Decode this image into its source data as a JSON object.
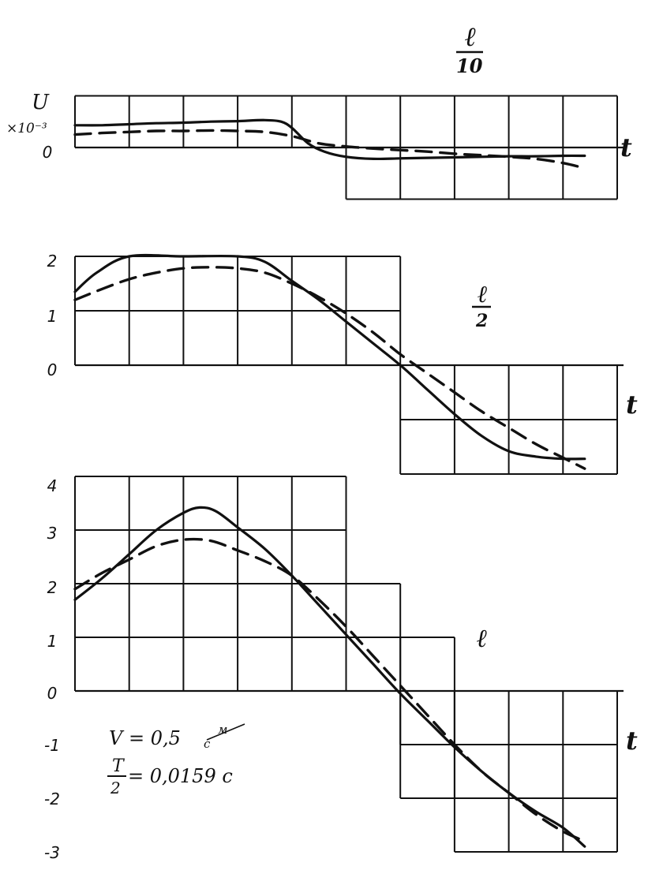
{
  "ink_color": "#111111",
  "chart_data": [
    {
      "type": "line",
      "panel_label_top": "ℓ",
      "panel_label_bottom": "10",
      "ylabel": "U",
      "ylabel_scale": "×10⁻³",
      "xlabel": "t",
      "y_ticks": [
        "0"
      ],
      "ylim": [
        -1,
        1
      ],
      "grid": true,
      "series": [
        {
          "style": "solid",
          "x": [
            0,
            0.5,
            1,
            1.5,
            2,
            2.5,
            3,
            3.5,
            3.8,
            4,
            4.3,
            4.6,
            5,
            5.5,
            6,
            6.5,
            7,
            7.5,
            8,
            8.5,
            9,
            9.4
          ],
          "y": [
            0.43,
            0.43,
            0.45,
            0.47,
            0.48,
            0.5,
            0.51,
            0.53,
            0.5,
            0.38,
            0.08,
            -0.08,
            -0.18,
            -0.22,
            -0.21,
            -0.2,
            -0.19,
            -0.18,
            -0.17,
            -0.17,
            -0.16,
            -0.16
          ]
        },
        {
          "style": "dashed",
          "x": [
            0,
            0.5,
            1,
            1.5,
            2,
            2.5,
            3,
            3.5,
            4,
            4.5,
            5,
            5.5,
            6,
            6.5,
            7,
            7.5,
            8,
            8.5,
            9,
            9.4
          ],
          "y": [
            0.25,
            0.28,
            0.3,
            0.32,
            0.32,
            0.33,
            0.32,
            0.3,
            0.22,
            0.08,
            0.02,
            -0.02,
            -0.05,
            -0.08,
            -0.12,
            -0.15,
            -0.18,
            -0.22,
            -0.3,
            -0.4
          ]
        }
      ]
    },
    {
      "type": "line",
      "panel_label_top": "ℓ",
      "panel_label_bottom": "2",
      "xlabel": "t",
      "y_ticks": [
        "2",
        "1",
        "0"
      ],
      "ylim": [
        -2,
        2
      ],
      "grid": true,
      "series": [
        {
          "style": "solid",
          "x": [
            0,
            0.4,
            1,
            2,
            3,
            3.5,
            4,
            4.5,
            5,
            5.5,
            6,
            6.5,
            7,
            7.5,
            8,
            8.5,
            9,
            9.4
          ],
          "y": [
            1.35,
            1.7,
            2.0,
            2.0,
            2.0,
            1.9,
            1.55,
            1.2,
            0.8,
            0.4,
            0.0,
            -0.45,
            -0.9,
            -1.3,
            -1.58,
            -1.68,
            -1.72,
            -1.72
          ]
        },
        {
          "style": "dashed",
          "x": [
            0,
            0.5,
            1,
            1.5,
            2,
            2.5,
            3,
            3.5,
            4,
            4.5,
            5,
            5.5,
            6,
            6.5,
            7,
            7.5,
            8,
            8.5,
            9,
            9.4
          ],
          "y": [
            1.2,
            1.4,
            1.58,
            1.7,
            1.78,
            1.8,
            1.78,
            1.7,
            1.5,
            1.25,
            0.95,
            0.6,
            0.2,
            -0.15,
            -0.5,
            -0.85,
            -1.15,
            -1.45,
            -1.7,
            -1.9
          ]
        }
      ]
    },
    {
      "type": "line",
      "panel_label_top": "ℓ",
      "xlabel": "t",
      "y_ticks": [
        "4",
        "3",
        "2",
        "1",
        "0",
        "-1",
        "-2",
        "-3"
      ],
      "ylim": [
        -3,
        4
      ],
      "grid": true,
      "series": [
        {
          "style": "solid",
          "x": [
            0,
            0.5,
            1,
            1.5,
            2,
            2.3,
            2.6,
            3,
            3.5,
            4,
            4.5,
            5,
            5.5,
            6,
            6.5,
            7,
            7.5,
            8,
            8.5,
            9,
            9.4
          ],
          "y": [
            1.7,
            2.1,
            2.55,
            3.0,
            3.32,
            3.42,
            3.35,
            3.05,
            2.65,
            2.15,
            1.6,
            1.05,
            0.5,
            -0.05,
            -0.55,
            -1.05,
            -1.5,
            -1.9,
            -2.25,
            -2.55,
            -2.9
          ]
        },
        {
          "style": "dashed",
          "x": [
            0,
            0.5,
            1,
            1.5,
            2,
            2.5,
            3,
            3.5,
            4,
            4.5,
            5,
            5.5,
            6,
            6.5,
            7,
            7.5,
            8,
            8.5,
            9,
            9.4
          ],
          "y": [
            1.9,
            2.2,
            2.45,
            2.7,
            2.82,
            2.8,
            2.62,
            2.42,
            2.15,
            1.7,
            1.2,
            0.65,
            0.1,
            -0.45,
            -1.0,
            -1.5,
            -1.9,
            -2.3,
            -2.62,
            -2.8
          ]
        }
      ]
    }
  ],
  "annotation": {
    "line1": "V = 0,5",
    "line1_unit_top": "м",
    "line1_unit_bottom": "с",
    "line2_top": "T",
    "line2_bottom": "2",
    "line2_value": "= 0,0159 с"
  }
}
